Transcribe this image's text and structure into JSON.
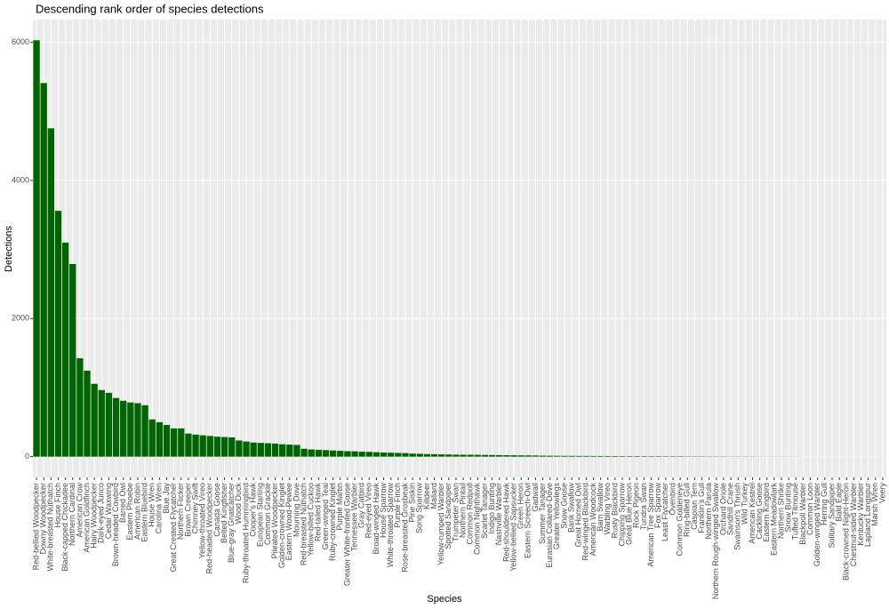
{
  "chart_data": {
    "type": "bar",
    "title": "Descending rank order of species detections",
    "x_label": "Species",
    "y_label": "Detections",
    "categories": [
      "Red-bellied Woodpecker",
      "Downy Woodpecker",
      "White-breasted Nuthatch",
      "House Finch",
      "Black-capped Chickadee",
      "Northern Cardinal",
      "American Crow",
      "American Goldfinch",
      "Hairy Woodpecker",
      "Dark-eyed Junco",
      "Cedar Waxwing",
      "Brown-headed Cowbird",
      "Barred Owl",
      "Eastern Phoebe",
      "American Robin",
      "Eastern Bluebird",
      "House Wren",
      "Carolina Wren",
      "Blue Jay",
      "Great Crested Flycatcher",
      "Northern Flicker",
      "Brown Creeper",
      "Chimney Swift",
      "Yellow-throated Vireo",
      "Red-headed Woodpecker",
      "Canada Goose",
      "Belted Kingfisher",
      "Blue-gray Gnatcatcher",
      "Wood Duck",
      "Ruby-throated Hummingbird",
      "Cooper's Hawk",
      "European Starling",
      "Common Grackle",
      "Pileated Woodpecker",
      "Golden-crowned Kinglet",
      "Eastern Wood-Pewee",
      "Mourning Dove",
      "Red-breasted Nuthatch",
      "Yellow-billed Cuckoo",
      "Red-tailed Hawk",
      "Green-winged Teal",
      "Ruby-crowned Kinglet",
      "Purple Martin",
      "Greater White-fronted Goose",
      "Tennessee Warbler",
      "Gray Catbird",
      "Red-eyed Vireo",
      "Broad-winged Hawk",
      "House Sparrow",
      "White-throated Sparrow",
      "Purple Finch",
      "Rose-breasted Grosbeak",
      "Pine Siskin",
      "Song Sparrow",
      "Killdeer",
      "Mallard",
      "Yellow-rumped Warbler",
      "Spotted Sandpiper",
      "Trumpeter Swan",
      "Northern Pintail",
      "Common Redpoll",
      "Common Nighthawk",
      "Scarlet Tanager",
      "Indigo Bunting",
      "Nashville Warbler",
      "Red-shouldered Hawk",
      "Yellow-bellied Sapsucker",
      "Green Heron",
      "Eastern Screech-Owl",
      "Gadwall",
      "Summer Tanager",
      "Eurasian Collared-Dove",
      "Greater Yellowlegs",
      "Snow Goose",
      "Bank Swallow",
      "Great Horned Owl",
      "Red-winged Blackbird",
      "American Woodcock",
      "Barn Swallow",
      "Warbling Vireo",
      "Rusty Blackbird",
      "Chipping Sparrow",
      "Great Blue Heron",
      "Rock Pigeon",
      "Tundra Swan",
      "American Tree Sparrow",
      "Fox Sparrow",
      "Least Flycatcher",
      "Ovenbird",
      "Common Goldeneye",
      "Ring-billed Gull",
      "Caspian Tern",
      "Franklin's Gull",
      "Northern Parula",
      "Northern Rough-winged Swallow",
      "Orchard Oriole",
      "Sandhill Crane",
      "Swainson's Thrush",
      "Wild Turkey",
      "American Kestrel",
      "Cackling Goose",
      "Eastern Kingbird",
      "Eastern Meadowlark",
      "Northern Shrike",
      "Snow Bunting",
      "Tufted Titmouse",
      "Blackpoll Warbler",
      "Common Loon",
      "Golden-winged Warbler",
      "Herring Gull",
      "Solitary Sandpiper",
      "Bald Eagle",
      "Black-crowned Night-Heron",
      "Chestnut-sided Warbler",
      "Kentucky Warbler",
      "Lapland Longspur",
      "Marsh Wren",
      "Veery"
    ],
    "values": [
      6030,
      5410,
      4755,
      3560,
      3100,
      2790,
      1425,
      1245,
      1055,
      965,
      925,
      850,
      810,
      785,
      775,
      745,
      540,
      500,
      460,
      410,
      410,
      335,
      320,
      310,
      300,
      290,
      285,
      280,
      235,
      220,
      205,
      200,
      195,
      190,
      180,
      175,
      170,
      115,
      105,
      100,
      95,
      90,
      85,
      80,
      78,
      72,
      70,
      65,
      60,
      58,
      55,
      52,
      45,
      42,
      38,
      36,
      34,
      32,
      30,
      29,
      28,
      27,
      26,
      24,
      23,
      22,
      21,
      20,
      19,
      18,
      15,
      14,
      13,
      12,
      12,
      11,
      11,
      10,
      10,
      9,
      9,
      8,
      8,
      8,
      7,
      7,
      7,
      6,
      6,
      6,
      5,
      5,
      5,
      4,
      4,
      4,
      3,
      3,
      3,
      3,
      2,
      2,
      2,
      2,
      2,
      2,
      1,
      1,
      1,
      1,
      1,
      1,
      1,
      1,
      1,
      1,
      1,
      1
    ],
    "color": "#006400",
    "ylim": [
      -300,
      6330
    ],
    "yticks": [
      0,
      2000,
      4000,
      6000
    ],
    "grid": true
  }
}
